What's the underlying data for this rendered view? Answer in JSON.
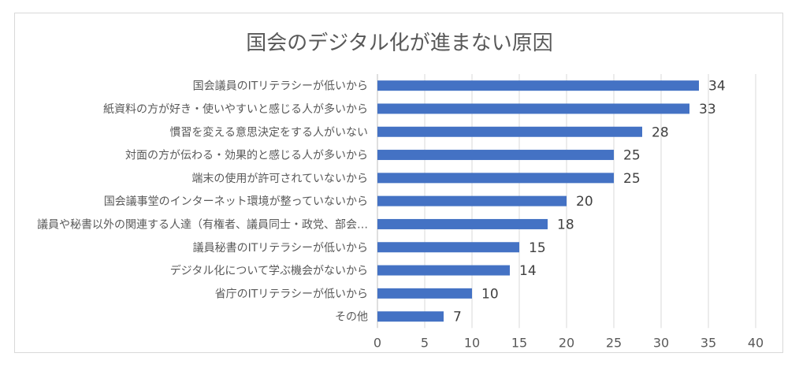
{
  "chart_data": {
    "type": "bar",
    "orientation": "horizontal",
    "title": "国会のデジタル化が進まない原因",
    "categories": [
      "国会議員のITリテラシーが低いから",
      "紙資料の方が好き・使いやすいと感じる人が多いから",
      "慣習を変える意思決定をする人がいない",
      "対面の方が伝わる・効果的と感じる人が多いから",
      "端末の使用が許可されていないから",
      "国会議事堂のインターネット環境が整っていないから",
      "議員や秘書以外の関連する人達（有権者、議員同士・政党、部会…",
      "議員秘書のITリテラシーが低いから",
      "デジタル化について学ぶ機会がないから",
      "省庁のITリテラシーが低いから",
      "その他"
    ],
    "values": [
      34,
      33,
      28,
      25,
      25,
      20,
      18,
      15,
      14,
      10,
      7
    ],
    "xlim": [
      0,
      40
    ],
    "xticks": [
      0,
      5,
      10,
      15,
      20,
      25,
      30,
      35,
      40
    ],
    "grid": true,
    "legend": "none",
    "bar_color": "#4472c4"
  }
}
